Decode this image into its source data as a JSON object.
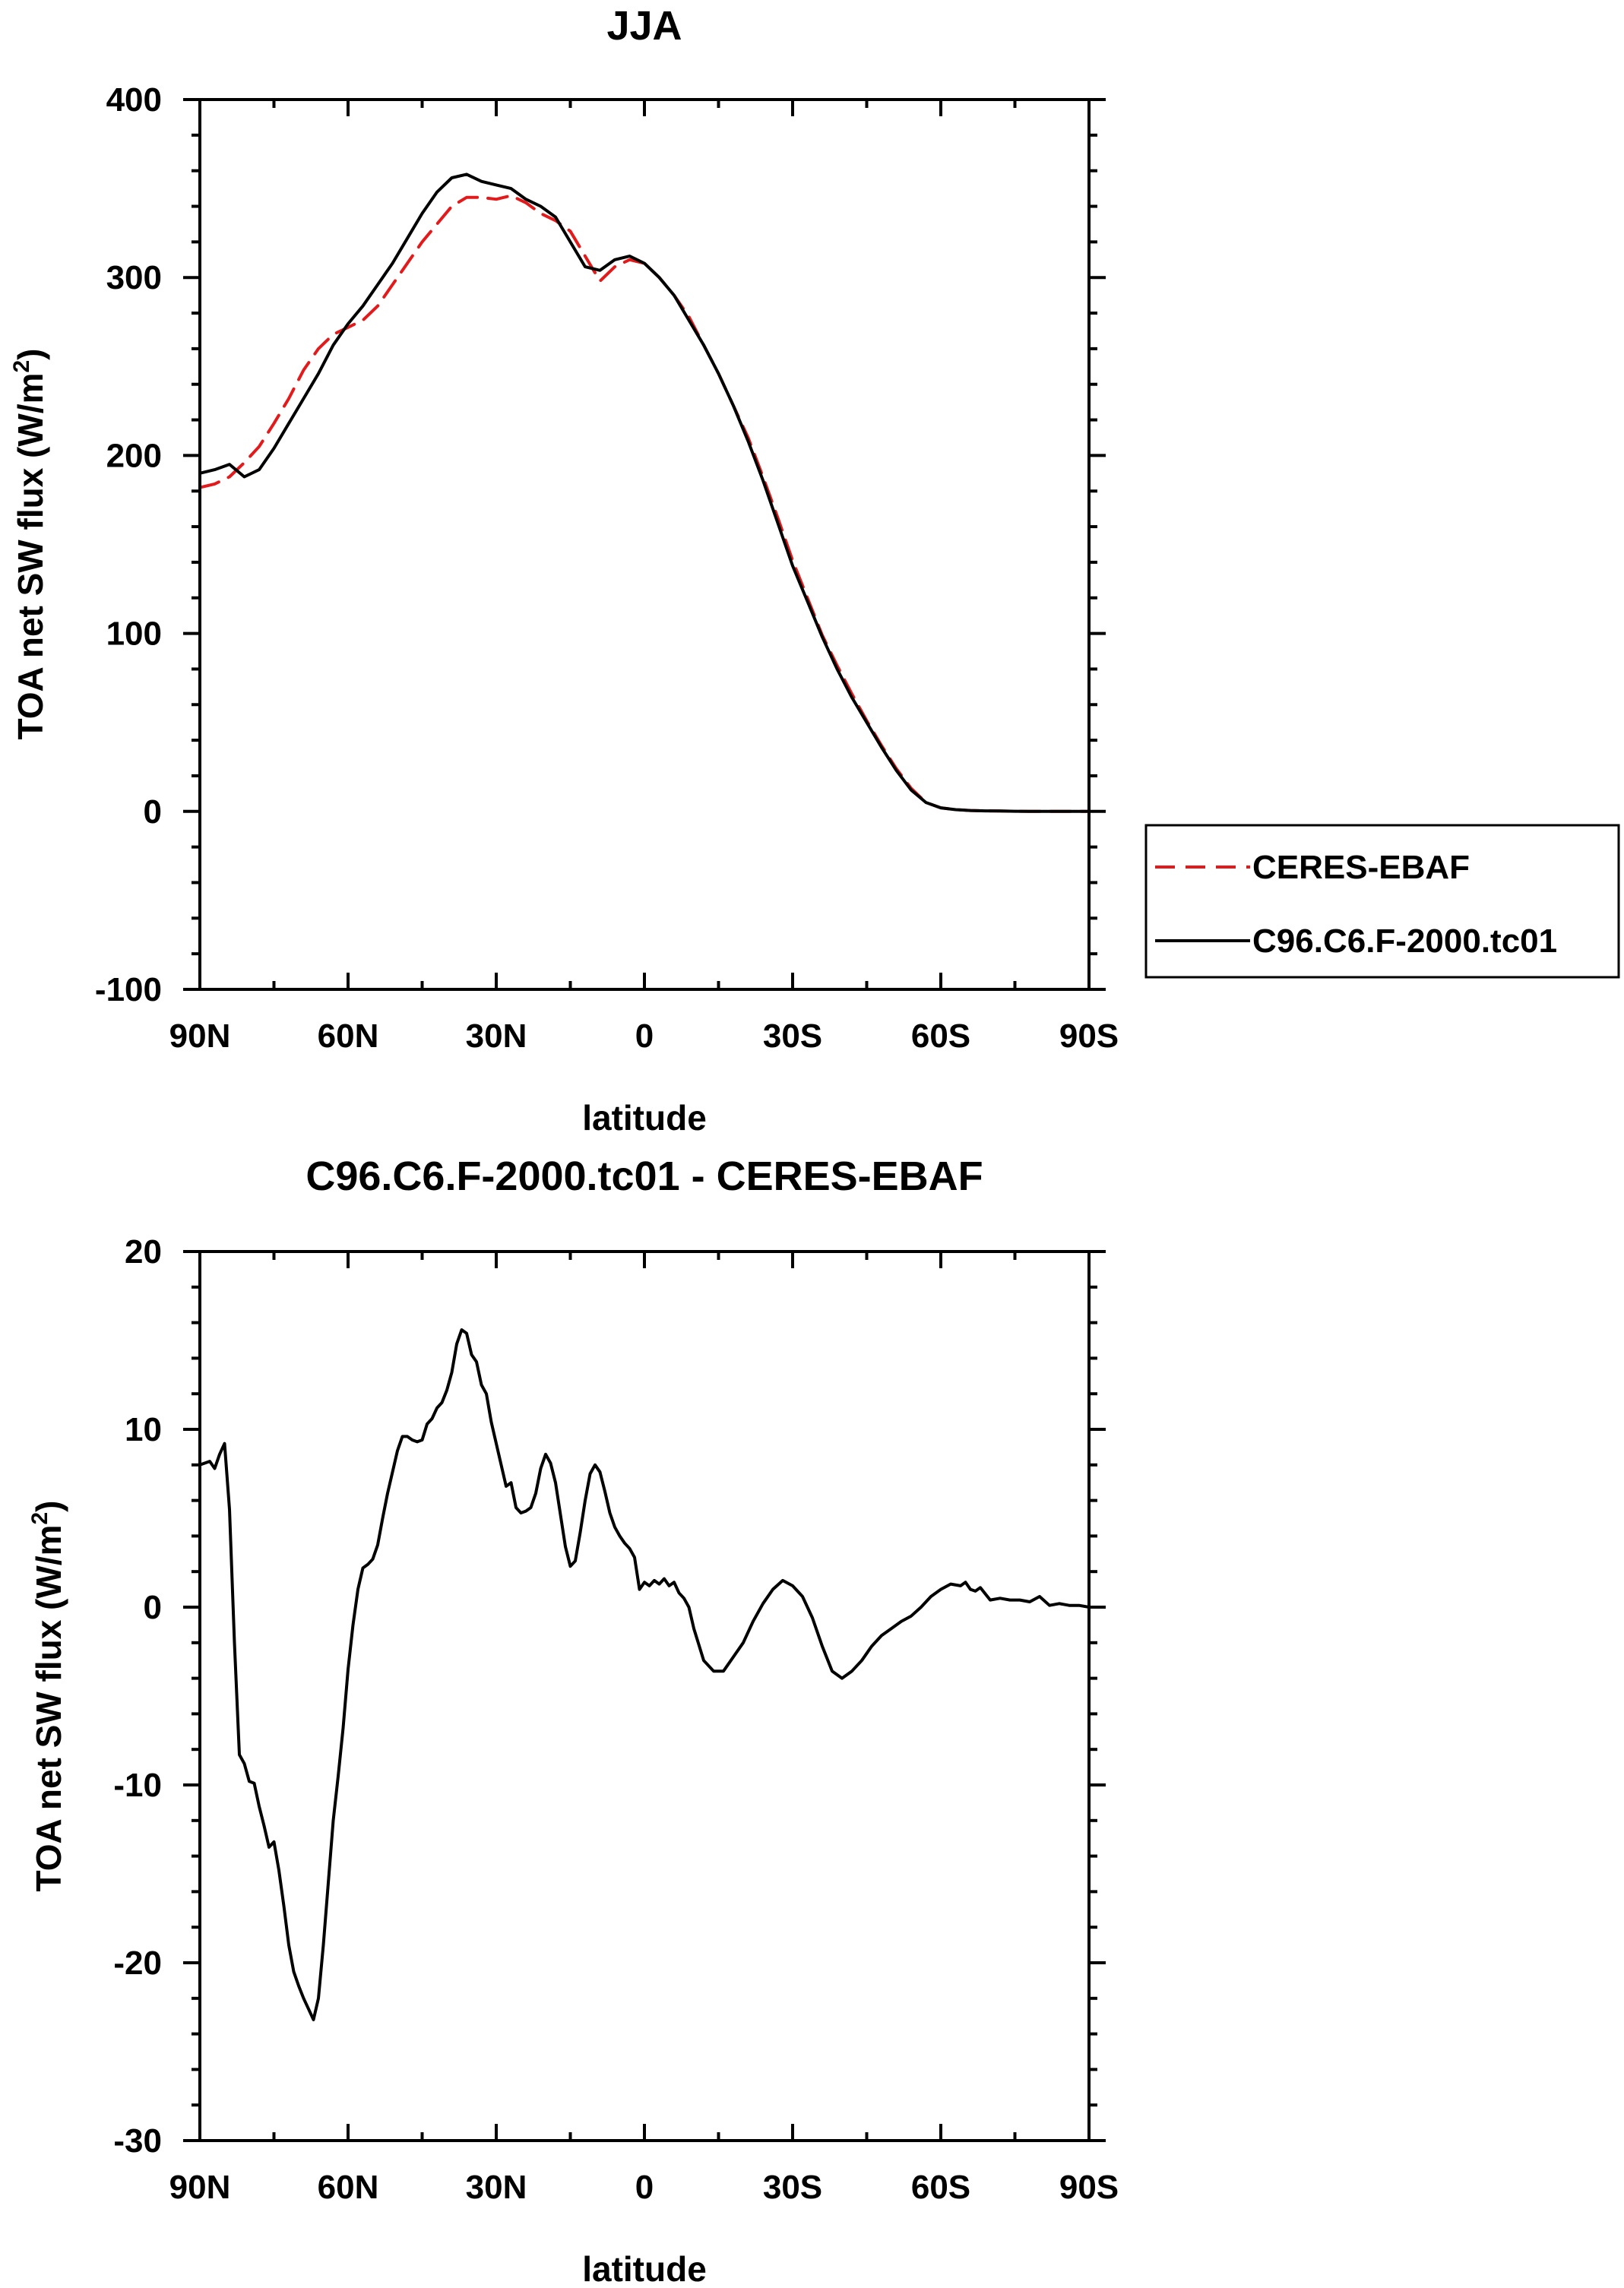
{
  "chart_data": [
    {
      "type": "line",
      "title": "JJA",
      "xlabel": "latitude",
      "ylabel": "TOA net SW flux (W/m",
      "ylabel_sup": "2",
      "ylabel_end": ")",
      "xlim": [
        90,
        -90
      ],
      "ylim": [
        -100,
        400
      ],
      "xticks": [
        90,
        60,
        30,
        0,
        -30,
        -60,
        -90
      ],
      "xtick_labels": [
        "90N",
        "60N",
        "30N",
        "0",
        "30S",
        "60S",
        "90S"
      ],
      "yticks": [
        -100,
        0,
        100,
        200,
        300,
        400
      ],
      "ytick_labels": [
        "-100",
        "0",
        "100",
        "200",
        "300",
        "400"
      ],
      "legend_position": "right",
      "series": [
        {
          "name": "CERES-EBAF",
          "color": "#e31a1c",
          "dash": "dashed",
          "x": [
            90,
            87,
            84,
            81,
            78,
            75,
            72,
            69,
            66,
            63,
            60,
            57,
            54,
            51,
            48,
            45,
            42,
            39,
            36,
            33,
            30,
            27,
            24,
            21,
            18,
            15,
            12,
            9,
            6,
            3,
            0,
            -3,
            -6,
            -9,
            -12,
            -15,
            -18,
            -21,
            -24,
            -27,
            -30,
            -33,
            -36,
            -39,
            -42,
            -45,
            -48,
            -51,
            -54,
            -57,
            -60,
            -63,
            -66,
            -69,
            -72,
            -75,
            -78,
            -81,
            -84,
            -87,
            -90
          ],
          "y": [
            182,
            184,
            188,
            196,
            205,
            218,
            232,
            248,
            260,
            268,
            272,
            276,
            284,
            296,
            308,
            320,
            330,
            340,
            345,
            345,
            344,
            346,
            342,
            336,
            332,
            326,
            312,
            298,
            306,
            310,
            308,
            300,
            290,
            278,
            262,
            246,
            228,
            210,
            188,
            165,
            141,
            120,
            99,
            82,
            66,
            51,
            37,
            24,
            13,
            5,
            2,
            1,
            0.5,
            0.3,
            0.2,
            0.1,
            0,
            0,
            0,
            0,
            0
          ]
        },
        {
          "name": "C96.C6.F-2000.tc01",
          "color": "#000000",
          "dash": "solid",
          "x": [
            90,
            87,
            84,
            81,
            78,
            75,
            72,
            69,
            66,
            63,
            60,
            57,
            54,
            51,
            48,
            45,
            42,
            39,
            36,
            33,
            30,
            27,
            24,
            21,
            18,
            15,
            12,
            9,
            6,
            3,
            0,
            -3,
            -6,
            -9,
            -12,
            -15,
            -18,
            -21,
            -24,
            -27,
            -30,
            -33,
            -36,
            -39,
            -42,
            -45,
            -48,
            -51,
            -54,
            -57,
            -60,
            -63,
            -66,
            -69,
            -72,
            -75,
            -78,
            -81,
            -84,
            -87,
            -90
          ],
          "y": [
            190,
            192,
            195,
            188,
            192,
            204,
            218,
            232,
            246,
            262,
            274,
            284,
            296,
            308,
            322,
            336,
            348,
            356,
            358,
            354,
            352,
            350,
            344,
            340,
            334,
            320,
            306,
            304,
            310,
            312,
            308,
            300,
            290,
            276,
            262,
            246,
            228,
            208,
            186,
            162,
            138,
            118,
            98,
            80,
            64,
            50,
            36,
            23,
            12,
            5,
            2,
            1,
            0.5,
            0.3,
            0.2,
            0.1,
            0,
            0,
            0,
            0,
            0
          ]
        }
      ]
    },
    {
      "type": "line",
      "title": "C96.C6.F-2000.tc01 - CERES-EBAF",
      "xlabel": "latitude",
      "ylabel": "TOA net SW flux (W/m",
      "ylabel_sup": "2",
      "ylabel_end": ")",
      "xlim": [
        90,
        -90
      ],
      "ylim": [
        -30,
        20
      ],
      "xticks": [
        90,
        60,
        30,
        0,
        -30,
        -60,
        -90
      ],
      "xtick_labels": [
        "90N",
        "60N",
        "30N",
        "0",
        "30S",
        "60S",
        "90S"
      ],
      "yticks": [
        -30,
        -20,
        -10,
        0,
        10,
        20
      ],
      "ytick_labels": [
        "-30",
        "-20",
        "-10",
        "0",
        "10",
        "20"
      ],
      "series": [
        {
          "name": "C96.C6.F-2000.tc01 - CERES-EBAF",
          "color": "#000000",
          "dash": "solid",
          "x": [
            90,
            88,
            87,
            86,
            85,
            84,
            83,
            82,
            81,
            80,
            79,
            78,
            77,
            76,
            75,
            74,
            73,
            72,
            71,
            70,
            69,
            68,
            67,
            66,
            65,
            64,
            63,
            62,
            61,
            60,
            59,
            58,
            57,
            56,
            55,
            54,
            53,
            52,
            51,
            50,
            49,
            48,
            47,
            46,
            45,
            44,
            43,
            42,
            41,
            40,
            39,
            38,
            37,
            36,
            35,
            34,
            33,
            32,
            31,
            30,
            29,
            28,
            27,
            26,
            25,
            24,
            23,
            22,
            21,
            20,
            19,
            18,
            17,
            16,
            15,
            14,
            13,
            12,
            11,
            10,
            9,
            8,
            7,
            6,
            5,
            4,
            3,
            2,
            1,
            0,
            -1,
            -2,
            -3,
            -4,
            -5,
            -6,
            -7,
            -8,
            -9,
            -10,
            -12,
            -14,
            -16,
            -18,
            -20,
            -22,
            -24,
            -26,
            -28,
            -30,
            -32,
            -34,
            -36,
            -38,
            -40,
            -42,
            -44,
            -46,
            -48,
            -50,
            -52,
            -54,
            -56,
            -58,
            -60,
            -62,
            -64,
            -65,
            -66,
            -67,
            -68,
            -70,
            -72,
            -74,
            -76,
            -78,
            -80,
            -82,
            -84,
            -86,
            -88,
            -90
          ],
          "y": [
            8.0,
            8.2,
            7.8,
            8.6,
            9.2,
            5.5,
            -2.0,
            -8.3,
            -8.8,
            -9.8,
            -9.9,
            -11.2,
            -12.3,
            -13.5,
            -13.2,
            -14.8,
            -16.8,
            -19.0,
            -20.5,
            -21.3,
            -22.0,
            -22.6,
            -23.2,
            -22.0,
            -19.0,
            -15.5,
            -12.0,
            -9.5,
            -6.8,
            -3.5,
            -1.0,
            1.0,
            2.2,
            2.4,
            2.7,
            3.5,
            5.0,
            6.4,
            7.6,
            8.8,
            9.6,
            9.6,
            9.4,
            9.3,
            9.4,
            10.3,
            10.6,
            11.2,
            11.5,
            12.2,
            13.2,
            14.8,
            15.6,
            15.4,
            14.2,
            13.8,
            12.5,
            12.0,
            10.4,
            9.2,
            8.0,
            6.8,
            7.0,
            5.6,
            5.3,
            5.4,
            5.6,
            6.4,
            7.8,
            8.6,
            8.1,
            7.0,
            5.2,
            3.4,
            2.3,
            2.6,
            4.2,
            6.0,
            7.5,
            8.0,
            7.6,
            6.5,
            5.3,
            4.5,
            4.0,
            3.6,
            3.3,
            2.8,
            1.0,
            1.4,
            1.2,
            1.5,
            1.3,
            1.6,
            1.2,
            1.4,
            0.8,
            0.5,
            0.0,
            -1.2,
            -3.0,
            -3.6,
            -3.6,
            -2.8,
            -2.0,
            -0.8,
            0.2,
            1.0,
            1.5,
            1.2,
            0.6,
            -0.6,
            -2.2,
            -3.6,
            -4.0,
            -3.6,
            -3.0,
            -2.2,
            -1.6,
            -1.2,
            -0.8,
            -0.5,
            0.0,
            0.6,
            1.0,
            1.3,
            1.2,
            1.4,
            1.0,
            0.9,
            1.1,
            0.4,
            0.5,
            0.4,
            0.4,
            0.3,
            0.6,
            0.1,
            0.2,
            0.1,
            0.1,
            0.0
          ]
        }
      ]
    }
  ]
}
